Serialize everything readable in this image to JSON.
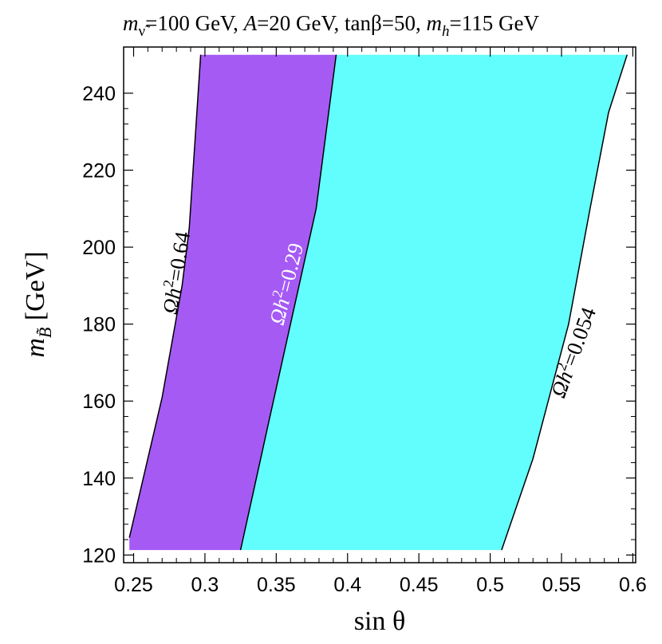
{
  "chart_data": {
    "type": "area",
    "title_parts": {
      "p1_text": "m",
      "p1_sub": "ν̃",
      "p2_text": "=100 GeV, ",
      "p3_italic": "A",
      "p4_text": "=20 GeV, tanβ=50, ",
      "p5_italic": "m",
      "p5_sub": "h",
      "p6_text": "=115 GeV"
    },
    "xlabel": "sin θ",
    "ylabel_parts": {
      "var": "m",
      "sub": "B̃",
      "unit": " [GeV]"
    },
    "xlim": [
      0.243,
      0.602
    ],
    "ylim": [
      118,
      252
    ],
    "x_ticks": [
      0.25,
      0.3,
      0.35,
      0.4,
      0.45,
      0.5,
      0.55,
      0.6
    ],
    "x_tick_labels": [
      "0.25",
      "0.3",
      "0.35",
      "0.4",
      "0.45",
      "0.5",
      "0.55",
      "0.6"
    ],
    "y_ticks": [
      120,
      140,
      160,
      180,
      200,
      220,
      240
    ],
    "y_tick_labels": [
      "120",
      "140",
      "160",
      "180",
      "200",
      "220",
      "240"
    ],
    "grid": false,
    "contours": [
      {
        "label_prefix": "Ωh",
        "label_exp": "2",
        "label_value": "=0.64",
        "label_color": "#000000",
        "points": [
          [
            0.247,
            124.5
          ],
          [
            0.27,
            161
          ],
          [
            0.284,
            190
          ],
          [
            0.289,
            205
          ],
          [
            0.297,
            250
          ]
        ]
      },
      {
        "label_prefix": "Ωh",
        "label_exp": "2",
        "label_value": "=0.29",
        "label_color": "#ffffff",
        "points": [
          [
            0.325,
            121.3
          ],
          [
            0.345,
            155
          ],
          [
            0.36,
            180
          ],
          [
            0.378,
            210
          ],
          [
            0.392,
            250
          ]
        ]
      },
      {
        "label_prefix": "Ωh",
        "label_exp": "2",
        "label_value": "=0.054",
        "label_color": "#000000",
        "points": [
          [
            0.508,
            121.3
          ],
          [
            0.53,
            145
          ],
          [
            0.555,
            180
          ],
          [
            0.57,
            210
          ],
          [
            0.583,
            235
          ],
          [
            0.596,
            250
          ]
        ]
      }
    ],
    "regions": [
      {
        "between": [
          0,
          1
        ],
        "color": "#a55af4"
      },
      {
        "between": [
          1,
          2
        ],
        "color": "#62fdfd"
      }
    ],
    "region_y_min": 121.3,
    "region_y_max": 250,
    "region_left_x": 0.247,
    "region_left_y_bottom": 124.5
  }
}
